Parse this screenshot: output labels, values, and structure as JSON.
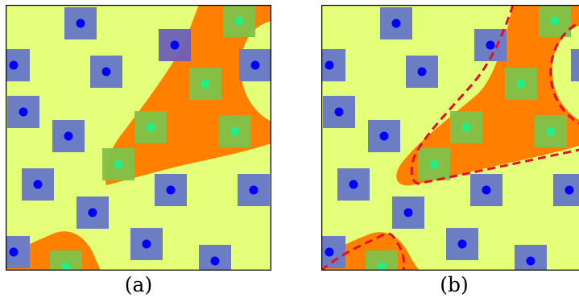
{
  "panels": [
    {
      "id": "a",
      "caption": "(a)",
      "show_boundary": false
    },
    {
      "id": "b",
      "caption": "(b)",
      "show_boundary": true
    }
  ],
  "colors": {
    "background_region": "#e4ff78",
    "orange_region": "#ff8000",
    "blue_square": "#6c7dc4",
    "blue_dot": "#0000ff",
    "green_square": "#7fc24a",
    "green_dot": "#22ee88",
    "boundary_line": "#e0102a",
    "frame": "#000000"
  }
}
